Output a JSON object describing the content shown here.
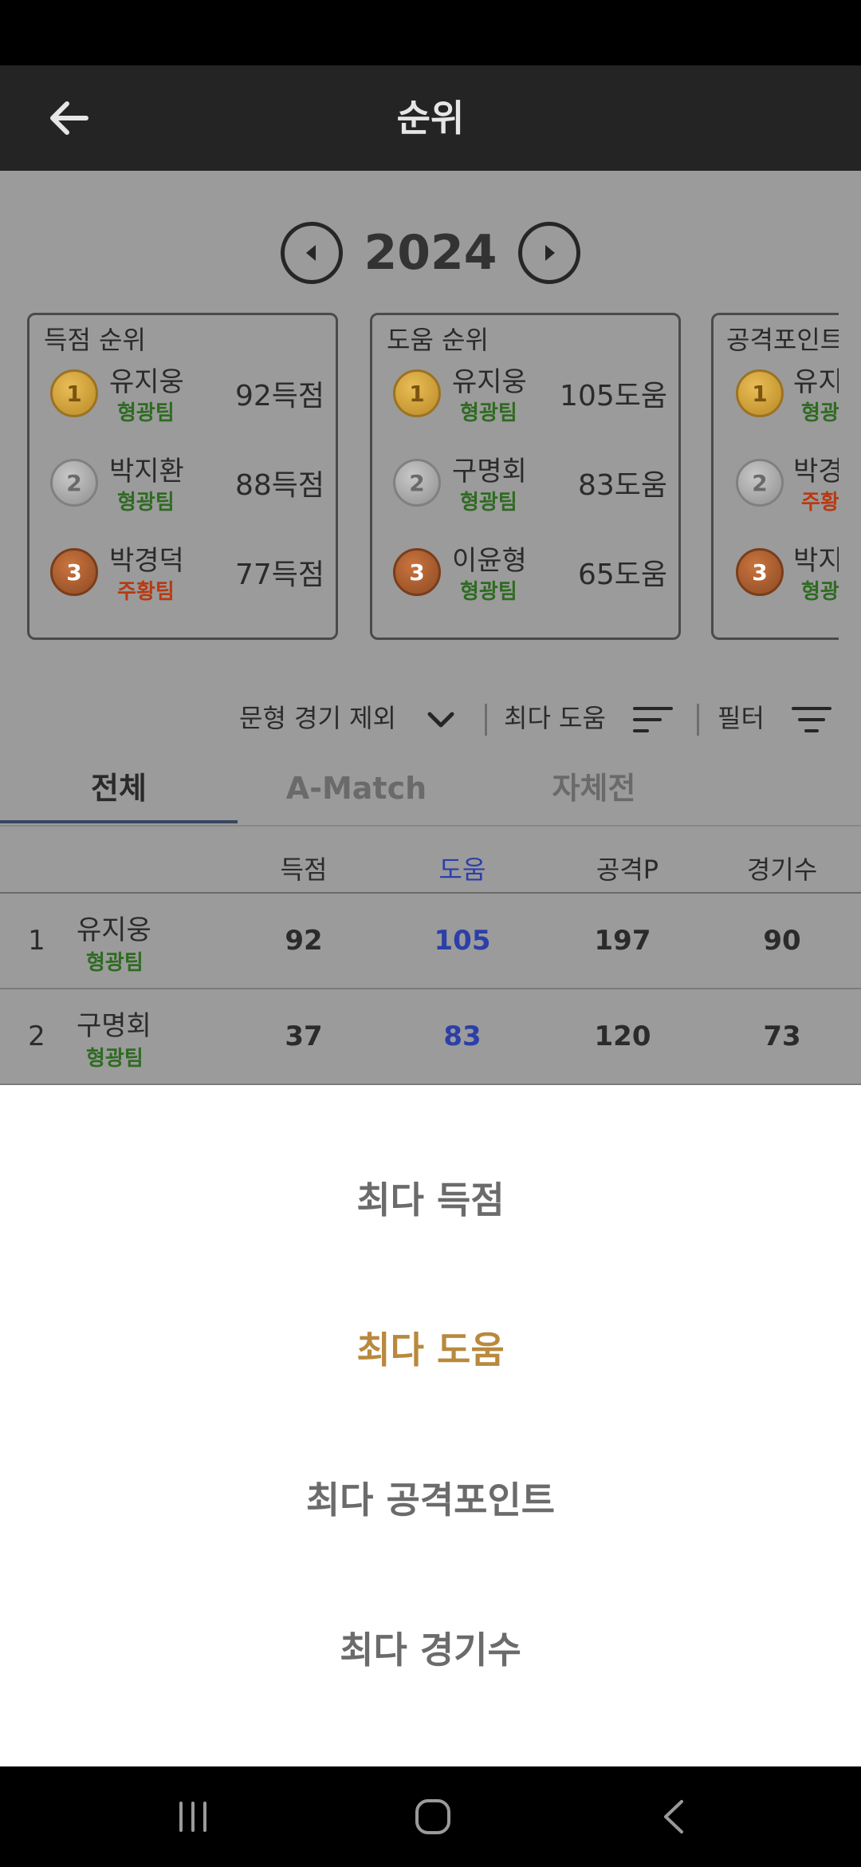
{
  "app_bar": {
    "title": "순위"
  },
  "year_selector": {
    "year": "2024"
  },
  "leader_cards": [
    {
      "title": "득점 순위",
      "ranks": [
        {
          "medal": "1",
          "name": "유지웅",
          "team": "형광팀",
          "stat": "92득점"
        },
        {
          "medal": "2",
          "name": "박지환",
          "team": "형광팀",
          "stat": "88득점"
        },
        {
          "medal": "3",
          "name": "박경덕",
          "team": "주황팀",
          "stat": "77득점"
        }
      ]
    },
    {
      "title": "도움 순위",
      "ranks": [
        {
          "medal": "1",
          "name": "유지웅",
          "team": "형광팀",
          "stat": "105도움"
        },
        {
          "medal": "2",
          "name": "구명회",
          "team": "형광팀",
          "stat": "83도움"
        },
        {
          "medal": "3",
          "name": "이윤형",
          "team": "형광팀",
          "stat": "65도움"
        }
      ]
    },
    {
      "title": "공격포인트",
      "ranks": [
        {
          "medal": "1",
          "name": "유지",
          "team": "형광"
        },
        {
          "medal": "2",
          "name": "박경",
          "team": "주황"
        },
        {
          "medal": "3",
          "name": "박지",
          "team": "형광"
        }
      ]
    }
  ],
  "filters": {
    "exclude_label": "문형 경기 제외",
    "sort_label": "최다 도움",
    "filter_label": "필터"
  },
  "tabs": [
    {
      "label": "전체"
    },
    {
      "label": "A-Match"
    },
    {
      "label": "자체전"
    }
  ],
  "table": {
    "headers": [
      "득점",
      "도움",
      "공격P",
      "경기수"
    ],
    "rows": [
      {
        "rank": "1",
        "name": "유지웅",
        "team": "형광팀",
        "goals": "92",
        "assists": "105",
        "points": "197",
        "games": "90"
      },
      {
        "rank": "2",
        "name": "구명회",
        "team": "형광팀",
        "goals": "37",
        "assists": "83",
        "points": "120",
        "games": "73"
      }
    ]
  },
  "sort_sheet": {
    "options": [
      "최다 득점",
      "최다 도움",
      "최다 공격포인트",
      "최다 경기수"
    ],
    "selected": "최다 도움"
  },
  "colors": {
    "team_green": "#2f6b22",
    "team_orange": "#b83a12",
    "highlight_blue": "#2c3fa8",
    "selected_gold": "#b8893e"
  },
  "icons": {
    "back": "arrow-left-icon",
    "prev": "chevron-left-circle-icon",
    "next": "chevron-right-circle-icon",
    "dropdown": "chevron-down-icon",
    "sort": "sort-icon",
    "filter": "filter-icon"
  }
}
